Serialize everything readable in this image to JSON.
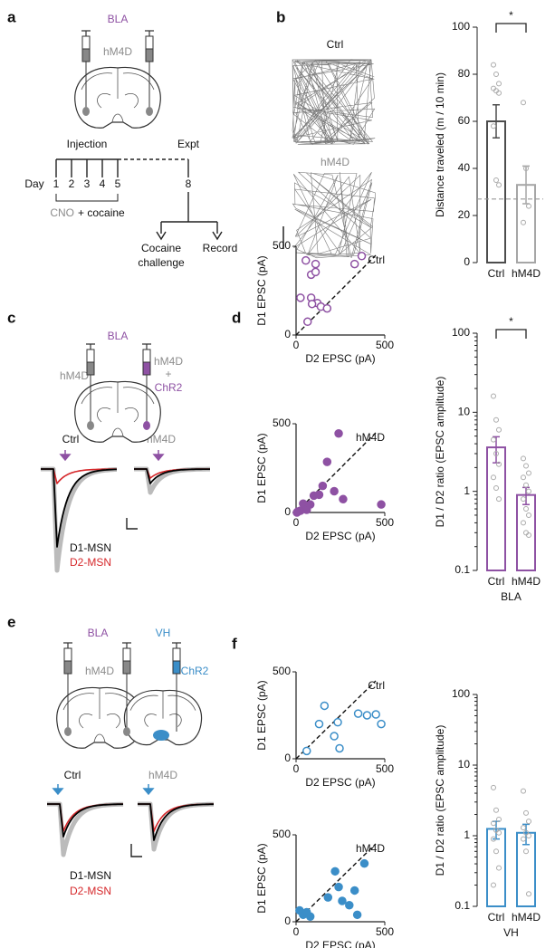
{
  "labels": [
    "a",
    "b",
    "c",
    "d",
    "e",
    "f"
  ],
  "panel_a": {
    "region": "BLA",
    "virus": "hM4D",
    "injection": "Injection",
    "expt": "Expt",
    "day": "Day",
    "days": [
      "1",
      "2",
      "3",
      "4",
      "5"
    ],
    "expt_day": "8",
    "drug": "CNO",
    "cocaine": "+ cocaine",
    "challenge": [
      "Cocaine",
      "challenge"
    ],
    "record": "Record"
  },
  "panel_b": {
    "tracks": [
      "Ctrl",
      "hM4D"
    ]
  },
  "panel_c": {
    "region": "BLA",
    "left_virus": "hM4D",
    "right_virus": "hM4D",
    "plus": "+",
    "opsin": "ChR2",
    "traces": [
      "Ctrl",
      "hM4D"
    ],
    "legend": [
      "D1-MSN",
      "D2-MSN"
    ]
  },
  "panel_e": {
    "regions": [
      "BLA",
      "VH"
    ],
    "virus": "hM4D",
    "opsin": "ChR2",
    "traces": [
      "Ctrl",
      "hM4D"
    ],
    "legend": [
      "D1-MSN",
      "D2-MSN"
    ]
  },
  "chart_data": [
    {
      "type": "bar",
      "categories": [
        "Ctrl",
        "hM4D"
      ],
      "values": [
        60,
        33
      ],
      "errors": [
        7,
        8
      ],
      "points": [
        [
          84,
          80,
          76,
          74,
          73,
          72,
          58,
          35,
          33
        ],
        [
          68,
          40,
          24,
          17
        ]
      ],
      "colors": [
        "#4d4d4d",
        "#a6a6a6"
      ],
      "ylabel": "Distance traveled (m / 10 min)",
      "ylim": [
        0,
        100
      ],
      "yticks": [
        0,
        20,
        40,
        60,
        80,
        100
      ],
      "reference_line": 27,
      "significance": "*"
    },
    {
      "type": "scatter",
      "annotation": "Ctrl",
      "x": [
        55,
        110,
        330,
        370,
        85,
        110,
        25,
        85,
        120,
        140,
        175,
        90,
        65
      ],
      "y": [
        420,
        400,
        400,
        445,
        340,
        355,
        210,
        210,
        180,
        160,
        150,
        175,
        75
      ],
      "color": "#8e51a3",
      "marker": "open",
      "xlabel": "D2 EPSC (pA)",
      "ylabel": "D1 EPSC (pA)",
      "xlim": [
        0,
        500
      ],
      "ylim": [
        0,
        500
      ],
      "xticks": [
        0,
        500
      ],
      "yticks": [
        0,
        500
      ]
    },
    {
      "type": "scatter",
      "annotation": "hM4D",
      "x": [
        10,
        25,
        40,
        60,
        80,
        100,
        150,
        175,
        215,
        240,
        265,
        480,
        5,
        130
      ],
      "y": [
        5,
        10,
        50,
        15,
        45,
        95,
        150,
        285,
        120,
        445,
        75,
        45,
        0,
        100
      ],
      "color": "#8e51a3",
      "marker": "filled",
      "xlabel": "D2 EPSC (pA)",
      "ylabel": "D1 EPSC (pA)",
      "xlim": [
        0,
        500
      ],
      "ylim": [
        0,
        500
      ],
      "xticks": [
        0,
        500
      ],
      "yticks": [
        0,
        500
      ]
    },
    {
      "type": "bar",
      "categories": [
        "Ctrl",
        "hM4D"
      ],
      "values": [
        3.6,
        0.9
      ],
      "errors": [
        1.3,
        0.22
      ],
      "points": [
        [
          16,
          8,
          6,
          4.5,
          3,
          2.2,
          1.5,
          1.1,
          0.8
        ],
        [
          2.6,
          2.1,
          1.7,
          1.5,
          1.2,
          1,
          0.8,
          0.6,
          0.5,
          0.4,
          0.3,
          0.28
        ]
      ],
      "colors": [
        "#8e51a3",
        "#8e51a3"
      ],
      "ylabel": "D1 / D2 ratio (EPSC amplitude)",
      "xlabel": "BLA",
      "log_scale": true,
      "ylim": [
        0.1,
        100
      ],
      "yticks": [
        0.1,
        1,
        10,
        100
      ],
      "significance": "*"
    },
    {
      "type": "scatter",
      "annotation": "Ctrl",
      "x": [
        60,
        130,
        160,
        235,
        215,
        245,
        350,
        400,
        450,
        480
      ],
      "y": [
        45,
        200,
        305,
        210,
        130,
        60,
        260,
        250,
        255,
        200
      ],
      "color": "#3b8ec8",
      "marker": "open",
      "xlabel": "D2 EPSC (pA)",
      "ylabel": "D1 EPSC (pA)",
      "xlim": [
        0,
        500
      ],
      "ylim": [
        0,
        500
      ],
      "xticks": [
        0,
        500
      ],
      "yticks": [
        0,
        500
      ]
    },
    {
      "type": "scatter",
      "annotation": "hM4D",
      "x": [
        20,
        40,
        60,
        80,
        180,
        220,
        240,
        260,
        300,
        330,
        345,
        385
      ],
      "y": [
        65,
        40,
        55,
        30,
        140,
        290,
        200,
        120,
        95,
        180,
        40,
        335
      ],
      "color": "#3b8ec8",
      "marker": "filled",
      "xlabel": "D2 EPSC (pA)",
      "ylabel": "D1 EPSC (pA)",
      "xlim": [
        0,
        500
      ],
      "ylim": [
        0,
        500
      ],
      "xticks": [
        0,
        500
      ],
      "yticks": [
        0,
        500
      ]
    },
    {
      "type": "bar",
      "categories": [
        "Ctrl",
        "hM4D"
      ],
      "values": [
        1.25,
        1.1
      ],
      "errors": [
        0.35,
        0.35
      ],
      "points": [
        [
          4.8,
          2.3,
          1.7,
          1.5,
          1.2,
          1.1,
          0.9,
          0.6,
          0.35,
          0.2
        ],
        [
          4.3,
          2.1,
          1.6,
          1.3,
          1.1,
          1,
          0.9,
          0.6,
          0.15
        ]
      ],
      "colors": [
        "#3b8ec8",
        "#3b8ec8"
      ],
      "ylabel": "D1 / D2 ratio (EPSC amplitude)",
      "xlabel": "VH",
      "log_scale": true,
      "ylim": [
        0.1,
        100
      ],
      "yticks": [
        0.1,
        1,
        10,
        100
      ]
    }
  ]
}
